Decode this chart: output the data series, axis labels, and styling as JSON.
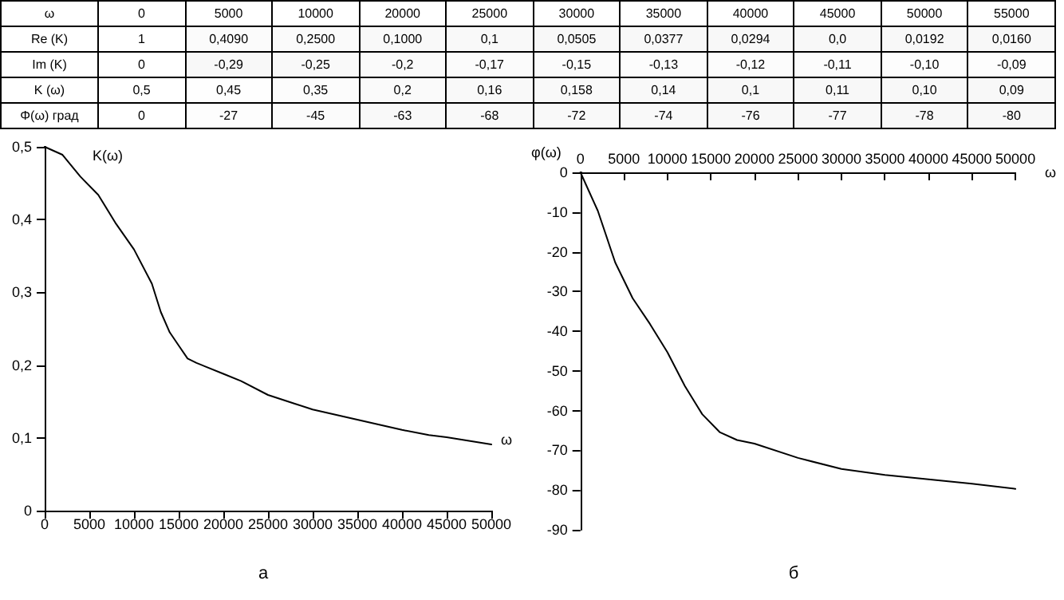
{
  "chart_data": [
    {
      "type": "heatmap",
      "xlabel": "ω",
      "categories": [
        "0",
        "5000",
        "10000",
        "20000",
        "25000",
        "30000",
        "35000",
        "40000",
        "45000",
        "50000",
        "55000"
      ],
      "y_categories": [
        "Re (K)",
        "Im (K)",
        "K (ω)",
        "Φ(ω) град"
      ],
      "cells": [
        [
          1,
          0.409,
          0.25,
          0.1,
          0.1,
          0.0505,
          0.0377,
          0.0294,
          0.0,
          0.0192,
          0.016
        ],
        [
          0,
          -0.29,
          -0.25,
          -0.2,
          -0.17,
          -0.15,
          -0.13,
          -0.12,
          -0.11,
          -0.1,
          -0.09
        ],
        [
          0.5,
          0.45,
          0.35,
          0.2,
          0.16,
          0.158,
          0.14,
          0.1,
          0.11,
          0.1,
          0.09
        ],
        [
          0,
          -27,
          -45,
          -63,
          -68,
          -72,
          -74,
          -76,
          -77,
          -78,
          -80
        ]
      ],
      "cell_labels": [
        [
          "1",
          "0,4090",
          "0,2500",
          "0,1000",
          "0,1",
          "0,0505",
          "0,0377",
          "0,0294",
          "0,0",
          "0,0192",
          "0,0160"
        ],
        [
          "0",
          "-0,29",
          "-0,25",
          "-0,2",
          "-0,17",
          "-0,15",
          "-0,13",
          "-0,12",
          "-0,11",
          "-0,10",
          "-0,09"
        ],
        [
          "0,5",
          "0,45",
          "0,35",
          "0,2",
          "0,16",
          "0,158",
          "0,14",
          "0,1",
          "0,11",
          "0,10",
          "0,09"
        ],
        [
          "0",
          "-27",
          "-45",
          "-63",
          "-68",
          "-72",
          "-74",
          "-76",
          "-77",
          "-78",
          "-80"
        ]
      ]
    },
    {
      "type": "line",
      "title": "а",
      "xlabel": "ω",
      "ylabel": "K(ω)",
      "marker": "none",
      "line_style": "solid",
      "grid": false,
      "x": [
        0,
        2000,
        4000,
        6000,
        8000,
        10000,
        12000,
        13000,
        14000,
        15000,
        16000,
        17000,
        20000,
        22000,
        25000,
        28000,
        30000,
        35000,
        40000,
        43000,
        45000,
        50000
      ],
      "series": [
        {
          "color": "#000000",
          "values": [
            0.5,
            0.489,
            0.459,
            0.434,
            0.394,
            0.359,
            0.312,
            0.273,
            0.245,
            0.227,
            0.209,
            0.203,
            0.188,
            0.178,
            0.159,
            0.147,
            0.139,
            0.125,
            0.111,
            0.104,
            0.101,
            0.091
          ]
        }
      ],
      "xlim": [
        0,
        50000
      ],
      "xticks": [
        0,
        5000,
        10000,
        15000,
        20000,
        25000,
        30000,
        35000,
        40000,
        45000,
        50000
      ],
      "ylim": [
        0,
        0.5
      ],
      "yticks": [
        0,
        {
          "value": 0.1,
          "label": "0,1"
        },
        {
          "value": 0.2,
          "label": "0,2"
        },
        {
          "value": 0.3,
          "label": "0,3"
        },
        {
          "value": 0.4,
          "label": "0,4"
        },
        {
          "value": 0.5,
          "label": "0,5"
        }
      ]
    },
    {
      "type": "line",
      "title": "б",
      "xlabel": "ω",
      "ylabel": "φ(ω)",
      "marker": "none",
      "line_style": "solid",
      "grid": false,
      "x": [
        0,
        2000,
        4000,
        6000,
        8000,
        10000,
        12000,
        14000,
        16000,
        18000,
        20000,
        25000,
        30000,
        35000,
        40000,
        45000,
        50000
      ],
      "series": [
        {
          "color": "#000000",
          "values": [
            0,
            -9.7,
            -22.7,
            -31.7,
            -38.2,
            -45.3,
            -53.8,
            -60.9,
            -65.4,
            -67.4,
            -68.3,
            -71.9,
            -74.7,
            -76.2,
            -77.3,
            -78.4,
            -79.7
          ]
        }
      ],
      "xlim": [
        0,
        50000
      ],
      "xticks": [
        0,
        5000,
        10000,
        15000,
        20000,
        25000,
        30000,
        35000,
        40000,
        45000,
        50000
      ],
      "ylim": [
        -90,
        0
      ],
      "yticks": [
        -90,
        -80,
        -70,
        -60,
        -50,
        -40,
        -30,
        -20,
        -10,
        0
      ]
    }
  ]
}
